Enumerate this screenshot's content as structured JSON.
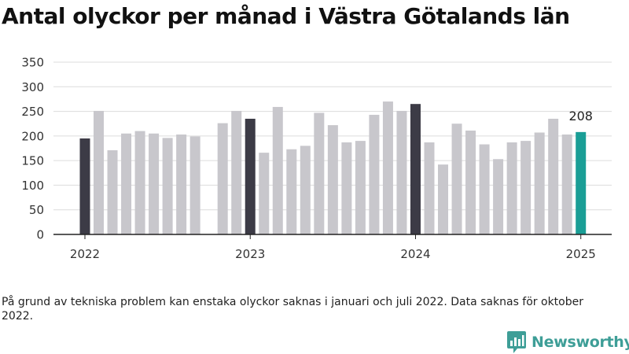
{
  "title": "Antal olyckor per månad i Västra Götalands län",
  "note": "På grund av tekniska problem kan enstaka olyckor saknas i januari och juli 2022. Data saknas för oktober 2022.",
  "brand": {
    "name": "Newsworthy",
    "icon": "bar-chart-logo-icon"
  },
  "colors": {
    "normal": "#c8c7cc",
    "january": "#3c3b46",
    "latest": "#1a9e96",
    "grid": "#dcdcdc",
    "axis": "#222222"
  },
  "chart_data": {
    "type": "bar",
    "ylim": [
      0,
      350
    ],
    "yticks": [
      0,
      50,
      100,
      150,
      200,
      250,
      300,
      350
    ],
    "xtick_labels": [
      "2022",
      "2023",
      "2024",
      "2025"
    ],
    "grid": true,
    "latest_value_label": "208",
    "series": [
      {
        "points": [
          {
            "x": "2022-01",
            "value": 195
          },
          {
            "x": "2022-02",
            "value": 251
          },
          {
            "x": "2022-03",
            "value": 171
          },
          {
            "x": "2022-04",
            "value": 205
          },
          {
            "x": "2022-05",
            "value": 210
          },
          {
            "x": "2022-06",
            "value": 205
          },
          {
            "x": "2022-07",
            "value": 196
          },
          {
            "x": "2022-08",
            "value": 203
          },
          {
            "x": "2022-09",
            "value": 199
          },
          {
            "x": "2022-10",
            "value": null
          },
          {
            "x": "2022-11",
            "value": 226
          },
          {
            "x": "2022-12",
            "value": 251
          },
          {
            "x": "2023-01",
            "value": 235
          },
          {
            "x": "2023-02",
            "value": 166
          },
          {
            "x": "2023-03",
            "value": 259
          },
          {
            "x": "2023-04",
            "value": 173
          },
          {
            "x": "2023-05",
            "value": 180
          },
          {
            "x": "2023-06",
            "value": 247
          },
          {
            "x": "2023-07",
            "value": 222
          },
          {
            "x": "2023-08",
            "value": 187
          },
          {
            "x": "2023-09",
            "value": 190
          },
          {
            "x": "2023-10",
            "value": 243
          },
          {
            "x": "2023-11",
            "value": 270
          },
          {
            "x": "2023-12",
            "value": 251
          },
          {
            "x": "2024-01",
            "value": 265
          },
          {
            "x": "2024-02",
            "value": 187
          },
          {
            "x": "2024-03",
            "value": 142
          },
          {
            "x": "2024-04",
            "value": 225
          },
          {
            "x": "2024-05",
            "value": 211
          },
          {
            "x": "2024-06",
            "value": 183
          },
          {
            "x": "2024-07",
            "value": 153
          },
          {
            "x": "2024-08",
            "value": 187
          },
          {
            "x": "2024-09",
            "value": 190
          },
          {
            "x": "2024-10",
            "value": 207
          },
          {
            "x": "2024-11",
            "value": 235
          },
          {
            "x": "2024-12",
            "value": 203
          },
          {
            "x": "2025-01",
            "value": 208
          }
        ]
      }
    ]
  }
}
